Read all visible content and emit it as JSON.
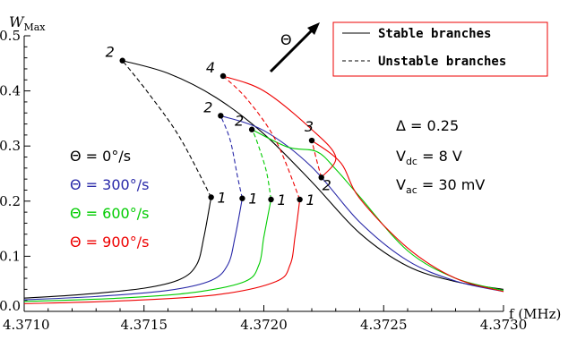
{
  "chart_data": {
    "type": "line",
    "xlabel": "f (MHz)",
    "ylabel": "W",
    "ylabel_sub": "Max",
    "xlim": [
      4.371,
      4.373
    ],
    "ylim": [
      0.0,
      0.5
    ],
    "xticks": [
      "4.3710",
      "4.3715",
      "4.3720",
      "4.3725",
      "4.3730"
    ],
    "yticks": [
      "0.0",
      "0.1",
      "0.2",
      "0.3",
      "0.4",
      "0.5"
    ],
    "grid": false,
    "legend": {
      "placement": "top-right",
      "stable_label": "Stable branches",
      "unstable_label": "Unstable branches"
    },
    "arrow_label": "Θ",
    "params": {
      "delta": "Δ = 0.25",
      "vdc_main": "V",
      "vdc_sub": "dc",
      "vdc_val": " = 8 V",
      "vac_main": "V",
      "vac_sub": "ac",
      "vac_val": " = 30 mV"
    },
    "series": [
      {
        "label": "Θ = 0°/s",
        "color": "#000000",
        "stable_lower": [
          [
            4.371,
            0.024
          ],
          [
            4.37125,
            0.031
          ],
          [
            4.3715,
            0.042
          ],
          [
            4.37165,
            0.058
          ],
          [
            4.37172,
            0.085
          ],
          [
            4.37175,
            0.135
          ],
          [
            4.37178,
            0.207
          ]
        ],
        "unstable": [
          [
            4.37178,
            0.207
          ],
          [
            4.37165,
            0.315
          ],
          [
            4.37152,
            0.395
          ],
          [
            4.37141,
            0.455
          ]
        ],
        "stable_upper": [
          [
            4.37141,
            0.455
          ],
          [
            4.3716,
            0.432
          ],
          [
            4.3718,
            0.388
          ],
          [
            4.372,
            0.322
          ],
          [
            4.3722,
            0.235
          ],
          [
            4.3724,
            0.142
          ],
          [
            4.3726,
            0.082
          ],
          [
            4.3728,
            0.054
          ],
          [
            4.373,
            0.04
          ]
        ],
        "points": [
          {
            "label": "1",
            "x": 4.37178,
            "y": 0.207
          },
          {
            "label": "2",
            "x": 4.37141,
            "y": 0.455
          }
        ]
      },
      {
        "label": "Θ = 300°/s",
        "color": "#2828a8",
        "stable_lower": [
          [
            4.371,
            0.021
          ],
          [
            4.3713,
            0.027
          ],
          [
            4.3716,
            0.038
          ],
          [
            4.37178,
            0.056
          ],
          [
            4.37185,
            0.085
          ],
          [
            4.37188,
            0.135
          ],
          [
            4.37191,
            0.205
          ]
        ],
        "unstable": [
          [
            4.37191,
            0.205
          ],
          [
            4.37189,
            0.245
          ],
          [
            4.37186,
            0.31
          ],
          [
            4.37182,
            0.355
          ]
        ],
        "stable_upper": [
          [
            4.37182,
            0.355
          ],
          [
            4.372,
            0.328
          ],
          [
            4.3722,
            0.262
          ],
          [
            4.3724,
            0.162
          ],
          [
            4.3726,
            0.092
          ],
          [
            4.3728,
            0.055
          ],
          [
            4.373,
            0.036
          ]
        ],
        "points": [
          {
            "label": "1",
            "x": 4.37191,
            "y": 0.205
          },
          {
            "label": "2",
            "x": 4.37182,
            "y": 0.355
          }
        ]
      },
      {
        "label": "Θ = 600°/s",
        "color": "#00cc00",
        "stable_lower": [
          [
            4.371,
            0.018
          ],
          [
            4.3714,
            0.024
          ],
          [
            4.3717,
            0.034
          ],
          [
            4.37192,
            0.054
          ],
          [
            4.37198,
            0.085
          ],
          [
            4.372,
            0.135
          ],
          [
            4.37203,
            0.203
          ]
        ],
        "unstable": [
          [
            4.37203,
            0.203
          ],
          [
            4.37201,
            0.255
          ],
          [
            4.37197,
            0.31
          ],
          [
            4.37195,
            0.33
          ]
        ],
        "stable_upper": [
          [
            4.37195,
            0.33
          ],
          [
            4.3721,
            0.298
          ],
          [
            4.37222,
            0.29
          ],
          [
            4.3723,
            0.258
          ],
          [
            4.3724,
            0.208
          ],
          [
            4.3726,
            0.11
          ],
          [
            4.3728,
            0.06
          ],
          [
            4.373,
            0.038
          ]
        ],
        "points": [
          {
            "label": "1",
            "x": 4.37203,
            "y": 0.203
          },
          {
            "label": "2",
            "x": 4.37195,
            "y": 0.33
          }
        ]
      },
      {
        "label": "Θ = 900°/s",
        "color": "#ee0000",
        "stable_lower": [
          [
            4.371,
            0.014
          ],
          [
            4.3714,
            0.019
          ],
          [
            4.3718,
            0.03
          ],
          [
            4.37205,
            0.054
          ],
          [
            4.37211,
            0.085
          ],
          [
            4.37213,
            0.135
          ],
          [
            4.37215,
            0.203
          ]
        ],
        "unstable": [
          [
            4.37215,
            0.203
          ],
          [
            4.37205,
            0.31
          ],
          [
            4.37193,
            0.385
          ],
          [
            4.37183,
            0.427
          ]
        ],
        "stable_upper": [
          [
            4.37183,
            0.427
          ],
          [
            4.372,
            0.4
          ],
          [
            4.3722,
            0.33
          ],
          [
            4.3723,
            0.28
          ],
          [
            4.37224,
            0.243
          ]
        ],
        "unstable_2": [
          [
            4.37224,
            0.243
          ],
          [
            4.37222,
            0.275
          ],
          [
            4.3722,
            0.31
          ]
        ],
        "stable_upper_2": [
          [
            4.3722,
            0.31
          ],
          [
            4.37232,
            0.27
          ],
          [
            4.3724,
            0.205
          ],
          [
            4.3726,
            0.115
          ],
          [
            4.3728,
            0.06
          ],
          [
            4.373,
            0.036
          ]
        ],
        "points": [
          {
            "label": "1",
            "x": 4.37215,
            "y": 0.203
          },
          {
            "label": "2",
            "x": 4.37224,
            "y": 0.243
          },
          {
            "label": "3",
            "x": 4.3722,
            "y": 0.31
          },
          {
            "label": "4",
            "x": 4.37183,
            "y": 0.427
          }
        ]
      }
    ]
  }
}
